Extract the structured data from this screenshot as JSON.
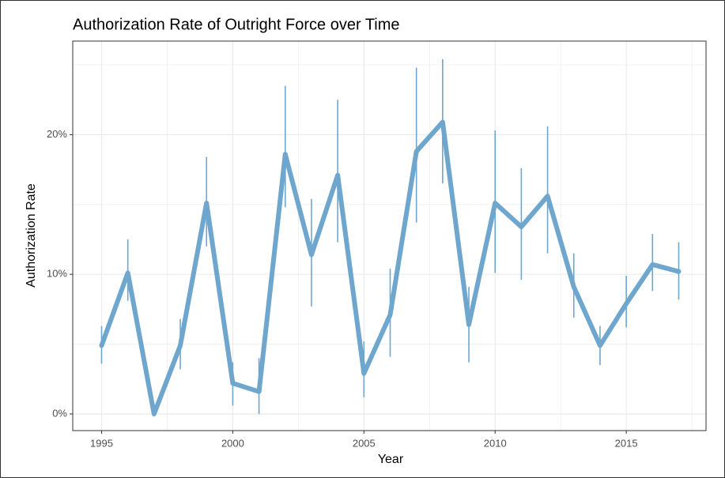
{
  "chart_data": {
    "type": "line",
    "title": "Authorization Rate of Outright Force over Time",
    "x_label": "Year",
    "y_label": "Authorization Rate",
    "x": [
      1995,
      1996,
      1997,
      1998,
      1999,
      2000,
      2001,
      2002,
      2003,
      2004,
      2005,
      2006,
      2007,
      2008,
      2009,
      2010,
      2011,
      2012,
      2013,
      2014,
      2015,
      2016,
      2017
    ],
    "series": [
      {
        "name": "Authorization Rate",
        "color": "#6ea6ce",
        "values": [
          4.9,
          10.1,
          0,
          4.9,
          15.1,
          2.2,
          1.6,
          18.6,
          11.4,
          17.1,
          2.9,
          7.1,
          18.8,
          20.9,
          6.4,
          15.1,
          13.4,
          15.6,
          9.1,
          4.9,
          7.9,
          10.7,
          10.2
        ],
        "ci_low": [
          3.6,
          8.1,
          null,
          3.2,
          12.0,
          0.6,
          0,
          14.8,
          7.7,
          12.3,
          1.2,
          4.1,
          13.7,
          16.5,
          3.7,
          10.1,
          9.6,
          11.5,
          6.9,
          3.5,
          6.2,
          8.8,
          8.2
        ],
        "ci_high": [
          6.3,
          12.5,
          null,
          6.8,
          18.4,
          3.7,
          4.0,
          23.5,
          15.4,
          22.5,
          5.2,
          10.4,
          24.8,
          25.4,
          9.1,
          20.3,
          17.6,
          20.6,
          11.5,
          6.3,
          9.9,
          12.9,
          12.3
        ]
      }
    ],
    "xlim": [
      1993.9,
      2018.04
    ],
    "ylim": [
      -1.19,
      26.7
    ],
    "xticks": [
      1995,
      2000,
      2005,
      2010,
      2015
    ],
    "yticks": [
      {
        "value": 0,
        "label": "0%"
      },
      {
        "value": 10,
        "label": "10%"
      },
      {
        "value": 20,
        "label": "20%"
      }
    ],
    "xminor": [
      1997.5,
      2002.5,
      2007.5,
      2012.5,
      2017.5
    ],
    "yminor": [
      5,
      15,
      25
    ],
    "grid": true
  }
}
